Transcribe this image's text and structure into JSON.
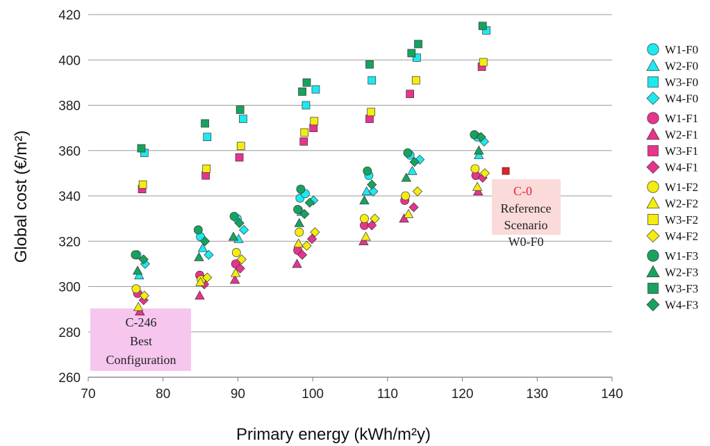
{
  "chart_data": {
    "type": "scatter",
    "xlabel": "Primary energy (kWh/m²y)",
    "ylabel": "Global cost (€/m²)",
    "xlim": [
      70,
      140
    ],
    "ylim": [
      260,
      420
    ],
    "x_ticks": [
      "70",
      "80",
      "90",
      "100",
      "110",
      "120",
      "130",
      "140"
    ],
    "y_ticks": [
      "260",
      "280",
      "300",
      "320",
      "340",
      "360",
      "380",
      "400",
      "420"
    ],
    "grid": "horizontal",
    "legend_position": "right",
    "colors": {
      "F0": "#1ee8f0",
      "F1": "#e8338f",
      "F2": "#f5ec10",
      "F3": "#17a35e"
    },
    "series": [
      {
        "name": "W1-F0",
        "group": "F0",
        "marker": "circle",
        "points": [
          [
            76.5,
            314
          ],
          [
            85,
            322
          ],
          [
            89.9,
            330
          ],
          [
            98.3,
            339
          ],
          [
            99.0,
            341
          ],
          [
            107.5,
            349
          ],
          [
            113,
            358
          ],
          [
            122,
            366
          ]
        ]
      },
      {
        "name": "W2-F0",
        "group": "F0",
        "marker": "triangle",
        "points": [
          [
            76.8,
            305
          ],
          [
            85.3,
            317
          ],
          [
            90.1,
            321
          ],
          [
            98.5,
            333
          ],
          [
            107.2,
            342
          ],
          [
            113.3,
            351
          ],
          [
            122.2,
            358
          ]
        ]
      },
      {
        "name": "W3-F0",
        "group": "F0",
        "marker": "square",
        "points": [
          [
            77.5,
            359
          ],
          [
            85.9,
            366
          ],
          [
            90.7,
            374
          ],
          [
            99.1,
            380
          ],
          [
            100.4,
            387
          ],
          [
            107.9,
            391
          ],
          [
            113.9,
            401
          ],
          [
            123.2,
            413
          ]
        ]
      },
      {
        "name": "W4-F0",
        "group": "F0",
        "marker": "diamond",
        "points": [
          [
            77.6,
            310
          ],
          [
            86.1,
            314
          ],
          [
            90.8,
            325
          ],
          [
            100.1,
            338
          ],
          [
            108.1,
            342
          ],
          [
            114.3,
            356
          ],
          [
            122.9,
            364
          ]
        ]
      },
      {
        "name": "W1-F1",
        "group": "F1",
        "marker": "circle",
        "points": [
          [
            76.6,
            297
          ],
          [
            84.9,
            305
          ],
          [
            89.7,
            310
          ],
          [
            98.0,
            316
          ],
          [
            106.9,
            327
          ],
          [
            112.3,
            338
          ],
          [
            121.8,
            349
          ]
        ]
      },
      {
        "name": "W2-F1",
        "group": "F1",
        "marker": "triangle",
        "points": [
          [
            76.9,
            289
          ],
          [
            84.9,
            296
          ],
          [
            89.6,
            303
          ],
          [
            97.9,
            310
          ],
          [
            106.8,
            320
          ],
          [
            112.2,
            330
          ],
          [
            122.1,
            342
          ]
        ]
      },
      {
        "name": "W3-F1",
        "group": "F1",
        "marker": "square",
        "points": [
          [
            77.2,
            343
          ],
          [
            85.7,
            349
          ],
          [
            90.2,
            357
          ],
          [
            98.8,
            364
          ],
          [
            100.1,
            370
          ],
          [
            107.6,
            374
          ],
          [
            113.0,
            385
          ],
          [
            122.6,
            397
          ]
        ]
      },
      {
        "name": "W4-F1",
        "group": "F1",
        "marker": "diamond",
        "points": [
          [
            77.4,
            294
          ],
          [
            85.5,
            301
          ],
          [
            90.3,
            308
          ],
          [
            98.6,
            314
          ],
          [
            99.9,
            321
          ],
          [
            107.9,
            327
          ],
          [
            113.5,
            335
          ],
          [
            122.7,
            348
          ]
        ]
      },
      {
        "name": "W1-F2",
        "group": "F2",
        "marker": "circle",
        "points": [
          [
            76.4,
            299
          ],
          [
            85.1,
            303
          ],
          [
            89.8,
            315
          ],
          [
            98.2,
            324
          ],
          [
            106.9,
            330
          ],
          [
            112.4,
            340
          ],
          [
            121.7,
            352
          ]
        ]
      },
      {
        "name": "W2-F2",
        "group": "F2",
        "marker": "triangle",
        "points": [
          [
            76.7,
            291
          ],
          [
            85.0,
            302
          ],
          [
            89.7,
            306
          ],
          [
            98.1,
            319
          ],
          [
            107.1,
            322
          ],
          [
            112.8,
            332
          ],
          [
            122.0,
            344
          ]
        ]
      },
      {
        "name": "W3-F2",
        "group": "F2",
        "marker": "square",
        "points": [
          [
            77.3,
            345
          ],
          [
            85.8,
            352
          ],
          [
            90.4,
            362
          ],
          [
            98.9,
            368
          ],
          [
            100.2,
            373
          ],
          [
            107.8,
            377
          ],
          [
            113.8,
            391
          ],
          [
            122.8,
            399
          ]
        ]
      },
      {
        "name": "W4-F2",
        "group": "F2",
        "marker": "diamond",
        "points": [
          [
            77.5,
            296
          ],
          [
            85.9,
            304
          ],
          [
            90.5,
            312
          ],
          [
            99.2,
            318
          ],
          [
            100.3,
            324
          ],
          [
            108.3,
            330
          ],
          [
            114.0,
            342
          ],
          [
            123.0,
            350
          ]
        ]
      },
      {
        "name": "W1-F3",
        "group": "F3",
        "marker": "circle",
        "points": [
          [
            76.3,
            314
          ],
          [
            84.7,
            325
          ],
          [
            89.5,
            331
          ],
          [
            98.0,
            334
          ],
          [
            98.4,
            343
          ],
          [
            107.3,
            351
          ],
          [
            112.7,
            359
          ],
          [
            121.6,
            367
          ]
        ]
      },
      {
        "name": "W2-F3",
        "group": "F3",
        "marker": "triangle",
        "points": [
          [
            76.6,
            307
          ],
          [
            84.8,
            313
          ],
          [
            89.4,
            322
          ],
          [
            98.2,
            328
          ],
          [
            106.9,
            338
          ],
          [
            112.5,
            348
          ],
          [
            122.2,
            360
          ]
        ]
      },
      {
        "name": "W3-F3",
        "group": "F3",
        "marker": "square",
        "points": [
          [
            77.1,
            361
          ],
          [
            85.6,
            372
          ],
          [
            90.3,
            378
          ],
          [
            98.6,
            386
          ],
          [
            99.2,
            390
          ],
          [
            107.6,
            398
          ],
          [
            113.2,
            403
          ],
          [
            114.1,
            407
          ],
          [
            122.7,
            415
          ]
        ]
      },
      {
        "name": "W4-F3",
        "group": "F3",
        "marker": "diamond",
        "points": [
          [
            77.4,
            312
          ],
          [
            85.6,
            320
          ],
          [
            90.2,
            328
          ],
          [
            98.9,
            332
          ],
          [
            99.6,
            337
          ],
          [
            107.9,
            345
          ],
          [
            113.6,
            355
          ],
          [
            122.5,
            366
          ]
        ]
      }
    ],
    "annotations": [
      {
        "id": "best",
        "lines": [
          "C-246",
          "Best",
          "Configuration"
        ],
        "box_fill": "#f6c6ee"
      },
      {
        "id": "reference",
        "marker_label": "C-0",
        "lines": [
          "Reference",
          "Scenario",
          "W0-F0"
        ],
        "point": [
          125.8,
          351
        ],
        "box_fill": "#fbdada",
        "marker_color": "#d6262e"
      }
    ]
  }
}
